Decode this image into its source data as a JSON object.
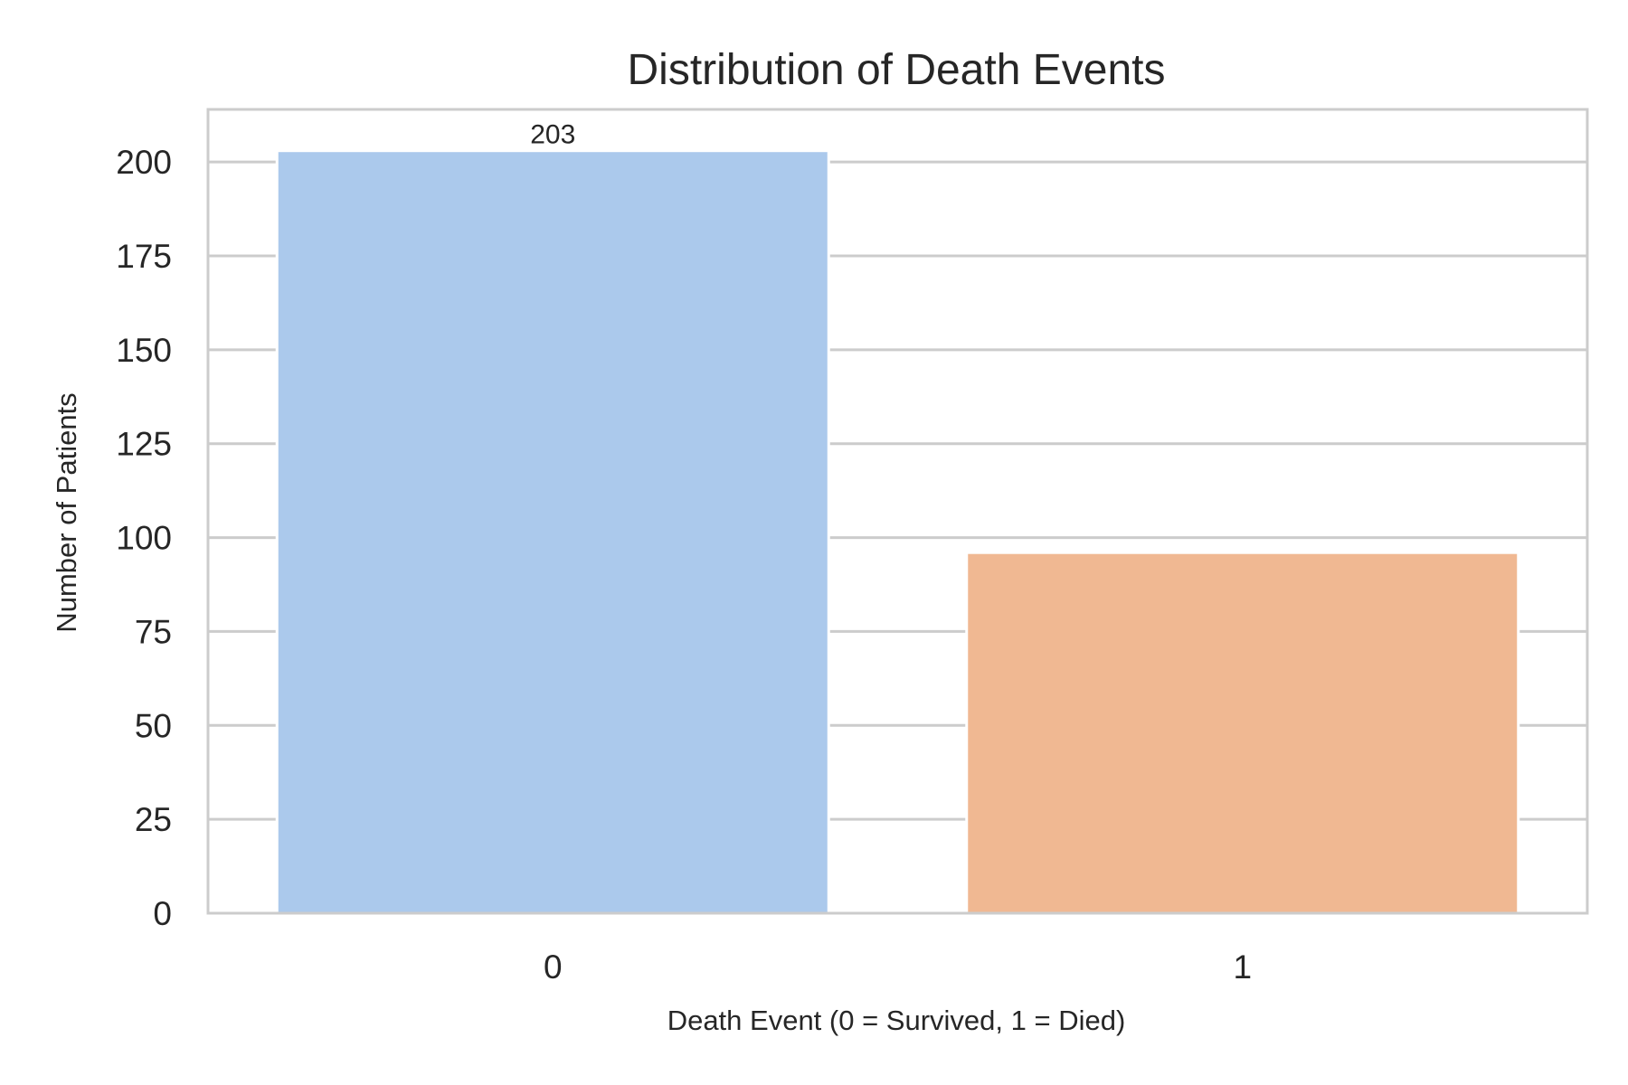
{
  "chart_data": {
    "type": "bar",
    "title": "Distribution of Death Events",
    "xlabel": "Death Event (0 = Survived, 1 = Died)",
    "ylabel": "Number of Patients",
    "categories": [
      "0",
      "1"
    ],
    "values": [
      203,
      96
    ],
    "bar_colors": [
      "#abc9ec",
      "#f0b892"
    ],
    "data_labels": [
      "203",
      null
    ],
    "ylim": [
      0,
      214
    ],
    "yticks": [
      0,
      25,
      50,
      75,
      100,
      125,
      150,
      175,
      200
    ],
    "grid": true,
    "legend": "none"
  }
}
